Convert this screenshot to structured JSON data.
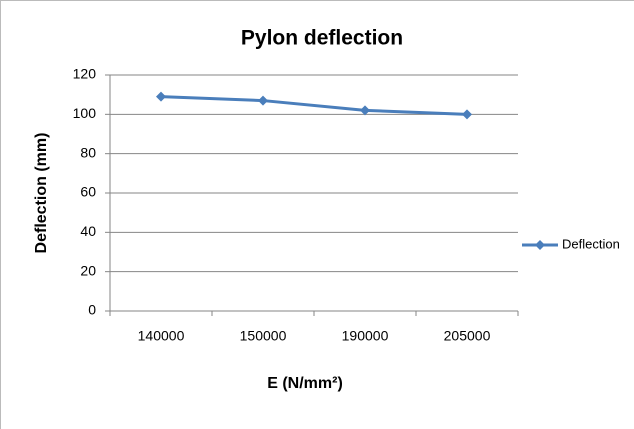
{
  "chart_data": {
    "type": "line",
    "title": "Pylon deflection",
    "x_label": "E  (N/mm²)",
    "y_label": "Deflection  (mm)",
    "categories": [
      "140000",
      "150000",
      "190000",
      "205000"
    ],
    "series": [
      {
        "name": "Deflection",
        "color": "#4a7ebb",
        "values": [
          109,
          107,
          102,
          100
        ]
      }
    ],
    "ylim": [
      0,
      120
    ],
    "yticks": [
      0,
      20,
      40,
      60,
      80,
      100,
      120
    ],
    "grid": true,
    "legend": "right"
  }
}
